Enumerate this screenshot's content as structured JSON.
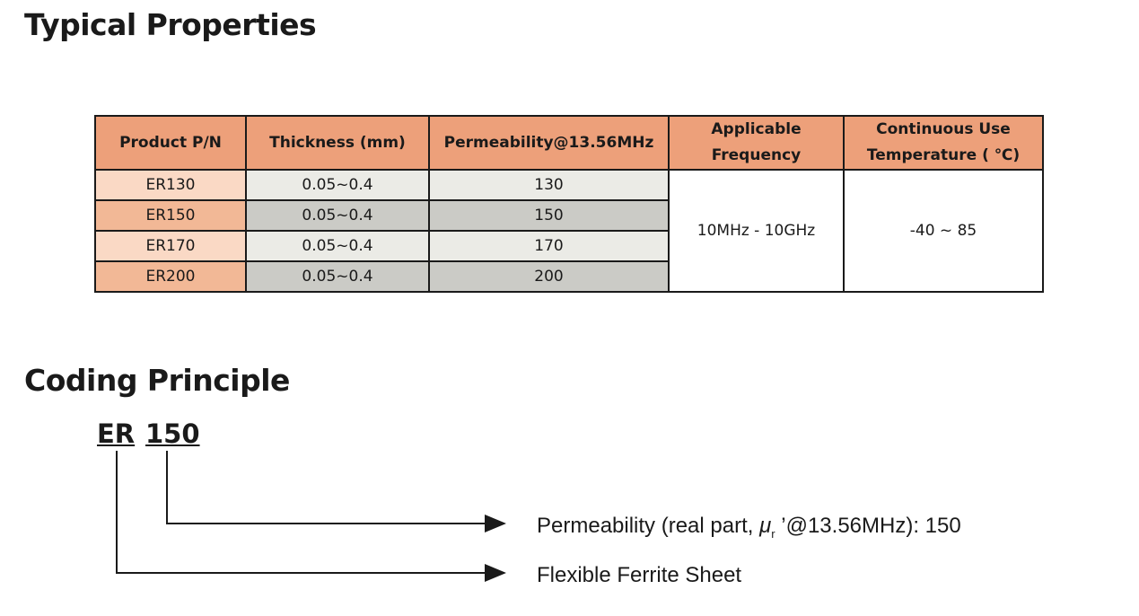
{
  "typical": {
    "title": "Typical Properties",
    "headers": [
      "Product P/N",
      "Thickness (mm)",
      "Permeability@13.56MHz",
      "Applicable Frequency",
      "Continuous Use Temperature ( ℃)"
    ],
    "rows": [
      {
        "pn": "ER130",
        "thickness": "0.05~0.4",
        "perm": "130"
      },
      {
        "pn": "ER150",
        "thickness": "0.05~0.4",
        "perm": "150"
      },
      {
        "pn": "ER170",
        "thickness": "0.05~0.4",
        "perm": "170"
      },
      {
        "pn": "ER200",
        "thickness": "0.05~0.4",
        "perm": "200"
      }
    ],
    "frequency": "10MHz - 10GHz",
    "temperature": "-40 ~ 85"
  },
  "coding": {
    "title": "Coding Principle",
    "prefix": "ER",
    "number": "150",
    "perm_desc": "Permeability (real part, ",
    "mu": "μ",
    "mu_sub": "r",
    "perm_desc2": " ’@13.56MHz): 150",
    "prefix_desc": "Flexible Ferrite Sheet"
  }
}
